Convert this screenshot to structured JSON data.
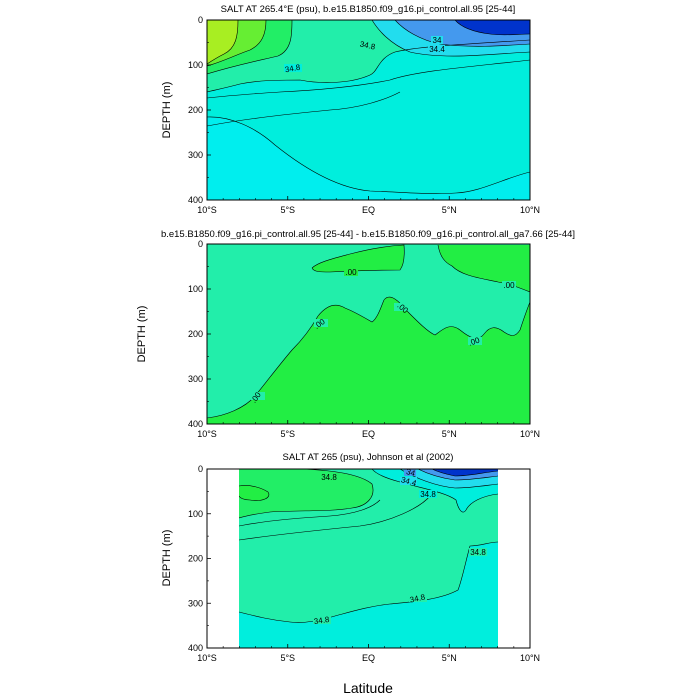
{
  "chart_data": [
    {
      "type": "contour",
      "title": "SALT AT 265.4°E (psu), b.e15.B1850.f09_g16.pi_control.all.95 [25-44]",
      "ylabel": "DEPTH (m)",
      "xlabel": "",
      "xlim": [
        -10,
        10
      ],
      "ylim": [
        400,
        0
      ],
      "xticks": [
        "10°S",
        "5°S",
        "EQ",
        "5°N",
        "10°N"
      ],
      "yticks": [
        "0",
        "100",
        "200",
        "300",
        "400"
      ],
      "contour_labels": [
        "34",
        "34.4",
        "34.8",
        "34.8"
      ],
      "fill_colors": [
        "#a8ee22",
        "#66ee33",
        "#22ee66",
        "#22eeaa",
        "#00eedd",
        "#00eeee",
        "#4499ee",
        "#0033cc"
      ]
    },
    {
      "type": "contour",
      "title": "b.e15.B1850.f09_g16.pi_control.all.95 [25-44] - b.e15.B1850.f09_g16.pi_control.all_ga7.66 [25-44]",
      "ylabel": "DEPTH (m)",
      "xlabel": "",
      "xlim": [
        -10,
        10
      ],
      "ylim": [
        400,
        0
      ],
      "xticks": [
        "10°S",
        "5°S",
        "EQ",
        "5°N",
        "10°N"
      ],
      "yticks": [
        "0",
        "100",
        "200",
        "300",
        "400"
      ],
      "contour_labels": [
        ".00",
        ".00",
        ".00",
        ".00",
        ".00",
        ".00"
      ],
      "fill_colors": [
        "#22eeaa",
        "#22ee44"
      ]
    },
    {
      "type": "contour",
      "title": "SALT AT 265 (psu), Johnson et al (2002)",
      "ylabel": "DEPTH (m)",
      "xlabel": "Latitude",
      "xlim": [
        -10,
        10
      ],
      "ylim": [
        400,
        0
      ],
      "data_xlim": [
        -8,
        8
      ],
      "xticks": [
        "10°S",
        "5°S",
        "EQ",
        "5°N",
        "10°N"
      ],
      "yticks": [
        "0",
        "100",
        "200",
        "300",
        "400"
      ],
      "contour_labels": [
        "34.8",
        "34.4",
        "34",
        "34.8",
        "34.8",
        "34.8",
        "34.8"
      ],
      "fill_colors": [
        "#22ee66",
        "#22eeaa",
        "#00eedd",
        "#4499ee",
        "#0033cc"
      ]
    }
  ]
}
